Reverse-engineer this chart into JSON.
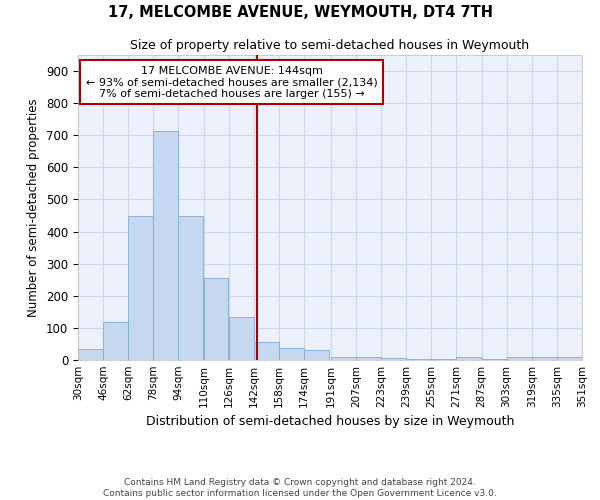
{
  "title": "17, MELCOMBE AVENUE, WEYMOUTH, DT4 7TH",
  "subtitle": "Size of property relative to semi-detached houses in Weymouth",
  "xlabel": "Distribution of semi-detached houses by size in Weymouth",
  "ylabel": "Number of semi-detached properties",
  "footer_line1": "Contains HM Land Registry data © Crown copyright and database right 2024.",
  "footer_line2": "Contains public sector information licensed under the Open Government Licence v3.0.",
  "property_size": 144,
  "property_label": "17 MELCOMBE AVENUE: 144sqm",
  "pct_smaller": 93,
  "count_smaller": 2134,
  "pct_larger": 7,
  "count_larger": 155,
  "bin_starts": [
    30,
    46,
    62,
    78,
    94,
    110,
    126,
    142,
    158,
    174,
    191,
    207,
    223,
    239,
    255,
    271,
    287,
    303,
    319,
    335,
    351
  ],
  "bin_width": 16,
  "bar_values": [
    35,
    117,
    447,
    712,
    447,
    255,
    135,
    57,
    38,
    30,
    10,
    8,
    5,
    2,
    2,
    8,
    2,
    8,
    8,
    8,
    0
  ],
  "bar_color": "#C5D8F0",
  "bar_edge_color": "#7BADD4",
  "grid_color": "#C8D8EE",
  "bg_color": "#EBF0FB",
  "vline_color": "#AA0000",
  "box_edge_color": "#AA0000",
  "ylim": [
    0,
    950
  ],
  "yticks": [
    0,
    100,
    200,
    300,
    400,
    500,
    600,
    700,
    800,
    900
  ]
}
